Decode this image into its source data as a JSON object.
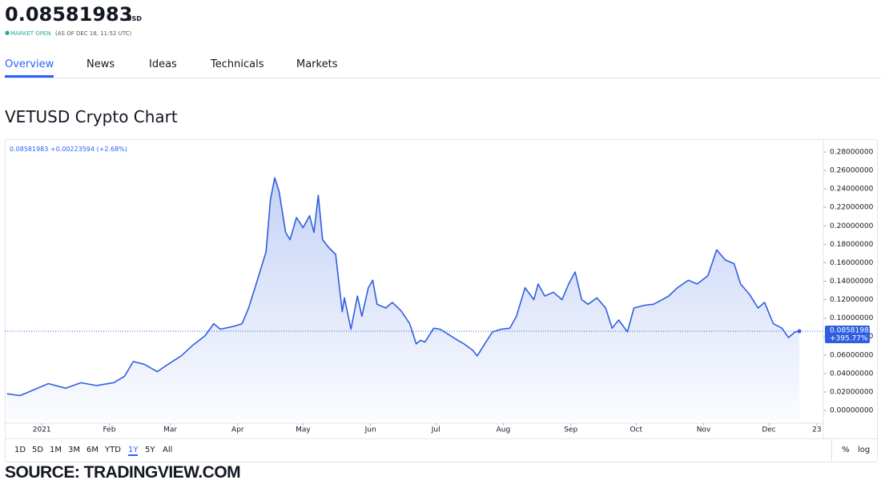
{
  "header": {
    "price": "0.08581983",
    "currency": "USD",
    "status": "MARKET OPEN",
    "as_of": "(AS OF DEC 16, 11:52 UTC)"
  },
  "tabs": [
    {
      "label": "Overview",
      "active": true
    },
    {
      "label": "News"
    },
    {
      "label": "Ideas"
    },
    {
      "label": "Technicals"
    },
    {
      "label": "Markets"
    }
  ],
  "section_title": "VETUSD Crypto Chart",
  "chart_data": {
    "type": "line",
    "legend": {
      "value": "0.08581983",
      "change": "+0.00223594",
      "change_pct": "(+2.68%)"
    },
    "price_tag": {
      "value": "0.08581983",
      "change": "+395.77%"
    },
    "x": [
      -16,
      -10,
      -4,
      3,
      11,
      18,
      25,
      33,
      38,
      42,
      47,
      53,
      58,
      64,
      69,
      75,
      79,
      82,
      88,
      92,
      95,
      99,
      103,
      105,
      107,
      109,
      112,
      114,
      117,
      120,
      123,
      125,
      127,
      129,
      132,
      135,
      138,
      139,
      142,
      145,
      147,
      150,
      152,
      154,
      158,
      161,
      165,
      169,
      172,
      174,
      176,
      180,
      183,
      187,
      191,
      194,
      198,
      200,
      204,
      207,
      211,
      215,
      218,
      222,
      226,
      228,
      231,
      235,
      239,
      242,
      245,
      248,
      251,
      255,
      259,
      262,
      265,
      269,
      272,
      277,
      281,
      285,
      288,
      292,
      297,
      301,
      306,
      310,
      314,
      318,
      321,
      325,
      329,
      332,
      336,
      340,
      343,
      346,
      348
    ],
    "series": [
      {
        "name": "VETUSD",
        "color": "#2f5fe0",
        "values": [
          0.018,
          0.016,
          0.022,
          0.029,
          0.024,
          0.03,
          0.027,
          0.03,
          0.037,
          0.053,
          0.05,
          0.042,
          0.05,
          0.059,
          0.07,
          0.081,
          0.094,
          0.088,
          0.091,
          0.094,
          0.111,
          0.141,
          0.172,
          0.228,
          0.252,
          0.237,
          0.193,
          0.185,
          0.209,
          0.198,
          0.211,
          0.193,
          0.233,
          0.185,
          0.176,
          0.169,
          0.107,
          0.122,
          0.088,
          0.124,
          0.102,
          0.133,
          0.141,
          0.115,
          0.111,
          0.117,
          0.108,
          0.094,
          0.072,
          0.076,
          0.074,
          0.089,
          0.088,
          0.082,
          0.076,
          0.072,
          0.065,
          0.059,
          0.074,
          0.085,
          0.088,
          0.089,
          0.102,
          0.133,
          0.12,
          0.137,
          0.124,
          0.128,
          0.12,
          0.137,
          0.15,
          0.12,
          0.115,
          0.122,
          0.111,
          0.089,
          0.098,
          0.085,
          0.111,
          0.114,
          0.115,
          0.12,
          0.124,
          0.133,
          0.141,
          0.137,
          0.146,
          0.174,
          0.163,
          0.159,
          0.137,
          0.126,
          0.111,
          0.117,
          0.094,
          0.089,
          0.079,
          0.085,
          0.08581983
        ]
      }
    ],
    "xlim": [
      -17,
      359
    ],
    "xticks": [
      {
        "value": 0,
        "label": "2021"
      },
      {
        "value": 31,
        "label": "Feb"
      },
      {
        "value": 59,
        "label": "Mar"
      },
      {
        "value": 90,
        "label": "Apr"
      },
      {
        "value": 120,
        "label": "May"
      },
      {
        "value": 151,
        "label": "Jun"
      },
      {
        "value": 181,
        "label": "Jul"
      },
      {
        "value": 212,
        "label": "Aug"
      },
      {
        "value": 243,
        "label": "Sep"
      },
      {
        "value": 273,
        "label": "Oct"
      },
      {
        "value": 304,
        "label": "Nov"
      },
      {
        "value": 334,
        "label": "Dec"
      },
      {
        "value": 356,
        "label": "23"
      }
    ],
    "ylim": [
      -0.0104,
      0.293
    ],
    "yticks": [
      {
        "value": 0,
        "label": "0.00000000"
      },
      {
        "value": 0.02,
        "label": "0.02000000"
      },
      {
        "value": 0.04,
        "label": "0.04000000"
      },
      {
        "value": 0.06,
        "label": "0.06000000"
      },
      {
        "value": 0.08,
        "label": "0.08000000"
      },
      {
        "value": 0.1,
        "label": "0.10000000"
      },
      {
        "value": 0.12,
        "label": "0.12000000"
      },
      {
        "value": 0.14,
        "label": "0.14000000"
      },
      {
        "value": 0.16,
        "label": "0.16000000"
      },
      {
        "value": 0.18,
        "label": "0.18000000"
      },
      {
        "value": 0.2,
        "label": "0.20000000"
      },
      {
        "value": 0.22,
        "label": "0.22000000"
      },
      {
        "value": 0.24,
        "label": "0.24000000"
      },
      {
        "value": 0.26,
        "label": "0.26000000"
      },
      {
        "value": 0.28,
        "label": "0.28000000"
      }
    ],
    "grid": false
  },
  "ranges": [
    {
      "label": "1D"
    },
    {
      "label": "5D"
    },
    {
      "label": "1M"
    },
    {
      "label": "3M"
    },
    {
      "label": "6M"
    },
    {
      "label": "YTD"
    },
    {
      "label": "1Y",
      "active": true
    },
    {
      "label": "5Y"
    },
    {
      "label": "All"
    }
  ],
  "toggles": [
    "%",
    "log"
  ],
  "source": "SOURCE: TRADINGVIEW.COM"
}
